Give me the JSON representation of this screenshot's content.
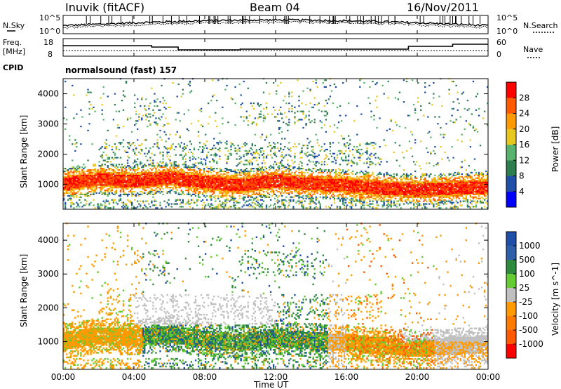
{
  "header": {
    "station": "Inuvik (fitACF)",
    "beam": "Beam 04",
    "date": "16/Nov/2011"
  },
  "noise_panel": {
    "left_label": "N.Sky",
    "right_label": "N.Search",
    "left_ticks": [
      "10^5",
      "10^0"
    ],
    "right_ticks": [
      "10^5",
      "10^0"
    ]
  },
  "freq_panel": {
    "left_label_1": "Freq.",
    "left_label_2": "[MHz]",
    "left_ticks": [
      "18",
      "8"
    ],
    "right_label": "Nave",
    "right_ticks": [
      "60",
      "0"
    ],
    "cpid_label": "CPID",
    "cpid_text": "normalsound (fast) 157"
  },
  "axes": {
    "ylabel": "Slant Range [km]",
    "xlabel": "Time UT",
    "y_ticks": [
      "1000",
      "2000",
      "3000",
      "4000"
    ],
    "x_ticks": [
      "00:00",
      "04:00",
      "08:00",
      "12:00",
      "16:00",
      "20:00",
      "00:00"
    ]
  },
  "colors": {
    "power": [
      "#0000ff",
      "#1f4fa8",
      "#2e7d4f",
      "#59b36e",
      "#e8c820",
      "#ff9a00",
      "#ff5a00",
      "#ff0000"
    ],
    "velocity": [
      "#ff0000",
      "#ff5a00",
      "#ff9a00",
      "#c0c0c0",
      "#c0c0c0",
      "#66cc33",
      "#2e8b3e",
      "#1f4fa8"
    ]
  },
  "chart_data": [
    {
      "type": "heatmap",
      "name": "Power",
      "colorbar_label": "Power [dB]",
      "colorbar_ticks": [
        "4",
        "8",
        "12",
        "16",
        "20",
        "24",
        "28"
      ],
      "range": [
        0,
        30
      ],
      "x_range_hours": [
        0,
        24
      ],
      "y_range_km": [
        180,
        4500
      ],
      "main_band": {
        "time_h": [
          0,
          2,
          4,
          6,
          8,
          10,
          12,
          14,
          16,
          18,
          20,
          22,
          24
        ],
        "center_km": [
          1000,
          1150,
          1100,
          1200,
          1050,
          950,
          1100,
          1000,
          950,
          850,
          800,
          850,
          900
        ]
      }
    },
    {
      "type": "heatmap",
      "name": "Velocity",
      "colorbar_label": "Velocity [m s^-1]",
      "colorbar_ticks": [
        "1000",
        "500",
        "100",
        "25",
        "-25",
        "-100",
        "-500",
        "-1000"
      ],
      "range": [
        -1000,
        1000
      ],
      "x_range_hours": [
        0,
        24
      ],
      "y_range_km": [
        180,
        4500
      ]
    }
  ]
}
